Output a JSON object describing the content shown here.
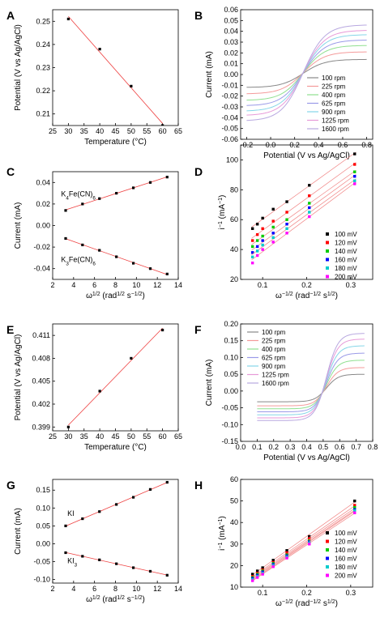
{
  "chart_data": [
    {
      "panel": "A",
      "type": "scatter",
      "xlabel": "Temperature (°C)",
      "ylabel": "Potential (V vs Ag/AgCl)",
      "xlim": [
        25,
        65
      ],
      "ylim": [
        0.205,
        0.255
      ],
      "xticks": [
        25,
        30,
        35,
        40,
        45,
        50,
        55,
        60,
        65
      ],
      "yticks": [
        0.21,
        0.22,
        0.23,
        0.24,
        0.25
      ],
      "series": [
        {
          "x": [
            30,
            40,
            50,
            60
          ],
          "y": [
            0.251,
            0.238,
            0.222,
            0.205
          ],
          "fit": true
        }
      ]
    },
    {
      "panel": "B",
      "type": "line",
      "xlabel": "Potential (V vs Ag/AgCl)",
      "ylabel": "Current (mA)",
      "xlim": [
        -0.25,
        0.85
      ],
      "ylim": [
        -0.06,
        0.06
      ],
      "xticks": [
        -0.2,
        0.0,
        0.2,
        0.4,
        0.6,
        0.8
      ],
      "yticks": [
        -0.06,
        -0.05,
        -0.04,
        -0.03,
        -0.02,
        -0.01,
        0.0,
        0.01,
        0.02,
        0.03,
        0.04,
        0.05,
        0.06
      ],
      "e_half": 0.27,
      "series": [
        {
          "name": "100 rpm",
          "color": "#888888",
          "anodic_limit": 0.014,
          "cathodic_limit": -0.012
        },
        {
          "name": "225 rpm",
          "color": "#f49a9a",
          "anodic_limit": 0.021,
          "cathodic_limit": -0.018
        },
        {
          "name": "400 rpm",
          "color": "#90e090",
          "anodic_limit": 0.027,
          "cathodic_limit": -0.024
        },
        {
          "name": "625 rpm",
          "color": "#9a9ae8",
          "anodic_limit": 0.032,
          "cathodic_limit": -0.029
        },
        {
          "name": "900 rpm",
          "color": "#86d6e8",
          "anodic_limit": 0.037,
          "cathodic_limit": -0.034
        },
        {
          "name": "1225 rpm",
          "color": "#e79ad8",
          "anodic_limit": 0.041,
          "cathodic_limit": -0.038
        },
        {
          "name": "1600 rpm",
          "color": "#b8a8e0",
          "anodic_limit": 0.046,
          "cathodic_limit": -0.043
        }
      ]
    },
    {
      "panel": "C",
      "type": "scatter",
      "xlabel": "ω1/2 (rad1/2 s−1/2)",
      "ylabel": "Current (mA)",
      "xlim": [
        2,
        14
      ],
      "ylim": [
        -0.05,
        0.05
      ],
      "xticks": [
        2,
        4,
        6,
        8,
        10,
        12,
        14
      ],
      "yticks": [
        -0.04,
        -0.02,
        0.0,
        0.02,
        0.04
      ],
      "annotations": [
        "K4Fe(CN)6",
        "K3Fe(CN)6"
      ],
      "series": [
        {
          "name": "K4Fe(CN)6",
          "x": [
            3.24,
            4.85,
            6.47,
            8.09,
            9.71,
            11.33,
            12.94
          ],
          "y": [
            0.014,
            0.02,
            0.025,
            0.03,
            0.035,
            0.04,
            0.045
          ],
          "fit": true
        },
        {
          "name": "K3Fe(CN)6",
          "x": [
            3.24,
            4.85,
            6.47,
            8.09,
            9.71,
            11.33,
            12.94
          ],
          "y": [
            -0.012,
            -0.018,
            -0.023,
            -0.029,
            -0.035,
            -0.04,
            -0.045
          ],
          "fit": true
        }
      ]
    },
    {
      "panel": "D",
      "type": "scatter",
      "xlabel": "ω−1/2 (rad−1/2 s1/2)",
      "ylabel": "i−1 (mA−1)",
      "xlim": [
        0.05,
        0.35
      ],
      "ylim": [
        20,
        110
      ],
      "xticks": [
        0.1,
        0.2,
        0.3
      ],
      "yticks": [
        20,
        40,
        60,
        80,
        100
      ],
      "x": [
        0.077,
        0.088,
        0.1,
        0.124,
        0.155,
        0.206,
        0.309
      ],
      "series": [
        {
          "name": "100 mV",
          "color": "#000000",
          "values": [
            54,
            57,
            61,
            67,
            72,
            83,
            104
          ]
        },
        {
          "name": "120 mV",
          "color": "#ff0000",
          "values": [
            46,
            50,
            54,
            59,
            65,
            76,
            97
          ]
        },
        {
          "name": "140 mV",
          "color": "#00cc00",
          "values": [
            42,
            46,
            49,
            55,
            60,
            71,
            92
          ]
        },
        {
          "name": "160 mV",
          "color": "#0000ff",
          "values": [
            38,
            42,
            46,
            51,
            57,
            68,
            89
          ]
        },
        {
          "name": "180 mV",
          "color": "#00cccc",
          "values": [
            35,
            39,
            43,
            48,
            54,
            65,
            86
          ]
        },
        {
          "name": "200 mV",
          "color": "#ff00ff",
          "values": [
            31,
            36,
            40,
            45,
            51,
            62,
            84
          ]
        }
      ]
    },
    {
      "panel": "E",
      "type": "scatter",
      "xlabel": "Temperature (°C)",
      "ylabel": "Potential (V vs Ag/AgCl)",
      "xlim": [
        25,
        65
      ],
      "ylim": [
        0.3985,
        0.4125
      ],
      "xticks": [
        25,
        30,
        35,
        40,
        45,
        50,
        55,
        60,
        65
      ],
      "yticks": [
        0.399,
        0.402,
        0.405,
        0.408,
        0.411
      ],
      "series": [
        {
          "x": [
            30,
            40,
            50,
            60
          ],
          "y": [
            0.399,
            0.4037,
            0.408,
            0.4117
          ],
          "fit": true
        }
      ]
    },
    {
      "panel": "F",
      "type": "line",
      "xlabel": "Potential (V vs Ag/AgCl)",
      "ylabel": "Current (mA)",
      "xlim": [
        0.0,
        0.8
      ],
      "ylim": [
        -0.15,
        0.2
      ],
      "xticks": [
        0.0,
        0.1,
        0.2,
        0.3,
        0.4,
        0.5,
        0.6,
        0.7,
        0.8
      ],
      "yticks": [
        -0.15,
        -0.1,
        -0.05,
        0.0,
        0.05,
        0.1,
        0.15,
        0.2
      ],
      "e_half": 0.52,
      "series": [
        {
          "name": "100 rpm",
          "color": "#888888",
          "anodic_limit": 0.05,
          "cathodic_limit": -0.032
        },
        {
          "name": "225 rpm",
          "color": "#f49a9a",
          "anodic_limit": 0.07,
          "cathodic_limit": -0.044
        },
        {
          "name": "400 rpm",
          "color": "#90e090",
          "anodic_limit": 0.092,
          "cathodic_limit": -0.053
        },
        {
          "name": "625 rpm",
          "color": "#9a9ae8",
          "anodic_limit": 0.113,
          "cathodic_limit": -0.062
        },
        {
          "name": "900 rpm",
          "color": "#86d6e8",
          "anodic_limit": 0.135,
          "cathodic_limit": -0.071
        },
        {
          "name": "1225 rpm",
          "color": "#e79ad8",
          "anodic_limit": 0.155,
          "cathodic_limit": -0.08
        },
        {
          "name": "1600 rpm",
          "color": "#b8a8e0",
          "anodic_limit": 0.172,
          "cathodic_limit": -0.088
        }
      ]
    },
    {
      "panel": "G",
      "type": "scatter",
      "xlabel": "ω1/2 (rad1/2 s−1/2)",
      "ylabel": "Current (mA)",
      "xlim": [
        2,
        14
      ],
      "ylim": [
        -0.11,
        0.18
      ],
      "xticks": [
        2,
        4,
        6,
        8,
        10,
        12,
        14
      ],
      "yticks": [
        -0.1,
        -0.05,
        0.0,
        0.05,
        0.1,
        0.15
      ],
      "annotations": [
        "KI",
        "KI3"
      ],
      "series": [
        {
          "name": "KI",
          "x": [
            3.24,
            4.85,
            6.47,
            8.09,
            9.71,
            11.33,
            12.94
          ],
          "y": [
            0.05,
            0.07,
            0.09,
            0.11,
            0.13,
            0.152,
            0.172
          ],
          "fit": true
        },
        {
          "name": "KI3",
          "x": [
            3.24,
            4.85,
            6.47,
            8.09,
            9.71,
            11.33,
            12.94
          ],
          "y": [
            -0.025,
            -0.035,
            -0.045,
            -0.056,
            -0.067,
            -0.077,
            -0.088
          ],
          "fit": true
        }
      ]
    },
    {
      "panel": "H",
      "type": "scatter",
      "xlabel": "ω−1/2 (rad−1/2 s1/2)",
      "ylabel": "i−1 (mA−1)",
      "xlim": [
        0.05,
        0.35
      ],
      "ylim": [
        10,
        60
      ],
      "xticks": [
        0.1,
        0.2,
        0.3
      ],
      "yticks": [
        10,
        20,
        30,
        40,
        50,
        60
      ],
      "x": [
        0.077,
        0.088,
        0.1,
        0.124,
        0.155,
        0.206,
        0.309
      ],
      "series": [
        {
          "name": "100 mV",
          "color": "#000000",
          "values": [
            16,
            17.5,
            19,
            22.5,
            27,
            33.5,
            50
          ]
        },
        {
          "name": "120 mV",
          "color": "#ff0000",
          "values": [
            15,
            16.5,
            18,
            21.5,
            26,
            32.5,
            48
          ]
        },
        {
          "name": "140 mV",
          "color": "#00cc00",
          "values": [
            14.5,
            16,
            17.5,
            21,
            25,
            31.5,
            47
          ]
        },
        {
          "name": "160 mV",
          "color": "#0000ff",
          "values": [
            14,
            15.5,
            17,
            20.5,
            24.5,
            31,
            46
          ]
        },
        {
          "name": "180 mV",
          "color": "#00cccc",
          "values": [
            13.5,
            15,
            16.5,
            20,
            24,
            30.5,
            45.5
          ]
        },
        {
          "name": "200 mV",
          "color": "#ff00ff",
          "values": [
            13,
            14.5,
            16,
            19.5,
            23.5,
            30,
            44.5
          ]
        }
      ]
    }
  ]
}
